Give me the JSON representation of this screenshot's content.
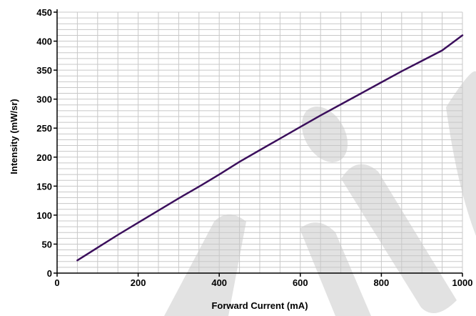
{
  "colors": {
    "series": "#3b0f5c",
    "grid": "#c8c8c8",
    "watermark": "#e2e2e2"
  },
  "chart_data": {
    "type": "line",
    "title": "",
    "xlabel": "Forward Current (mA)",
    "ylabel": "Intensity (mW/sr)",
    "xlim": [
      0,
      1000
    ],
    "ylim": [
      0,
      450
    ],
    "x_ticks": [
      0,
      200,
      400,
      600,
      800,
      1000
    ],
    "y_ticks": [
      0,
      50,
      100,
      150,
      200,
      250,
      300,
      350,
      400,
      450
    ],
    "grid": true,
    "legend": "none",
    "series": [
      {
        "x": [
          50,
          100,
          150,
          200,
          250,
          300,
          350,
          400,
          450,
          500,
          550,
          600,
          650,
          700,
          750,
          800,
          850,
          900,
          950,
          1000
        ],
        "y": [
          22,
          44,
          66,
          87,
          108,
          129,
          149,
          170,
          192,
          212,
          232,
          252,
          272,
          291,
          310,
          329,
          348,
          366,
          384,
          410
        ]
      }
    ]
  }
}
